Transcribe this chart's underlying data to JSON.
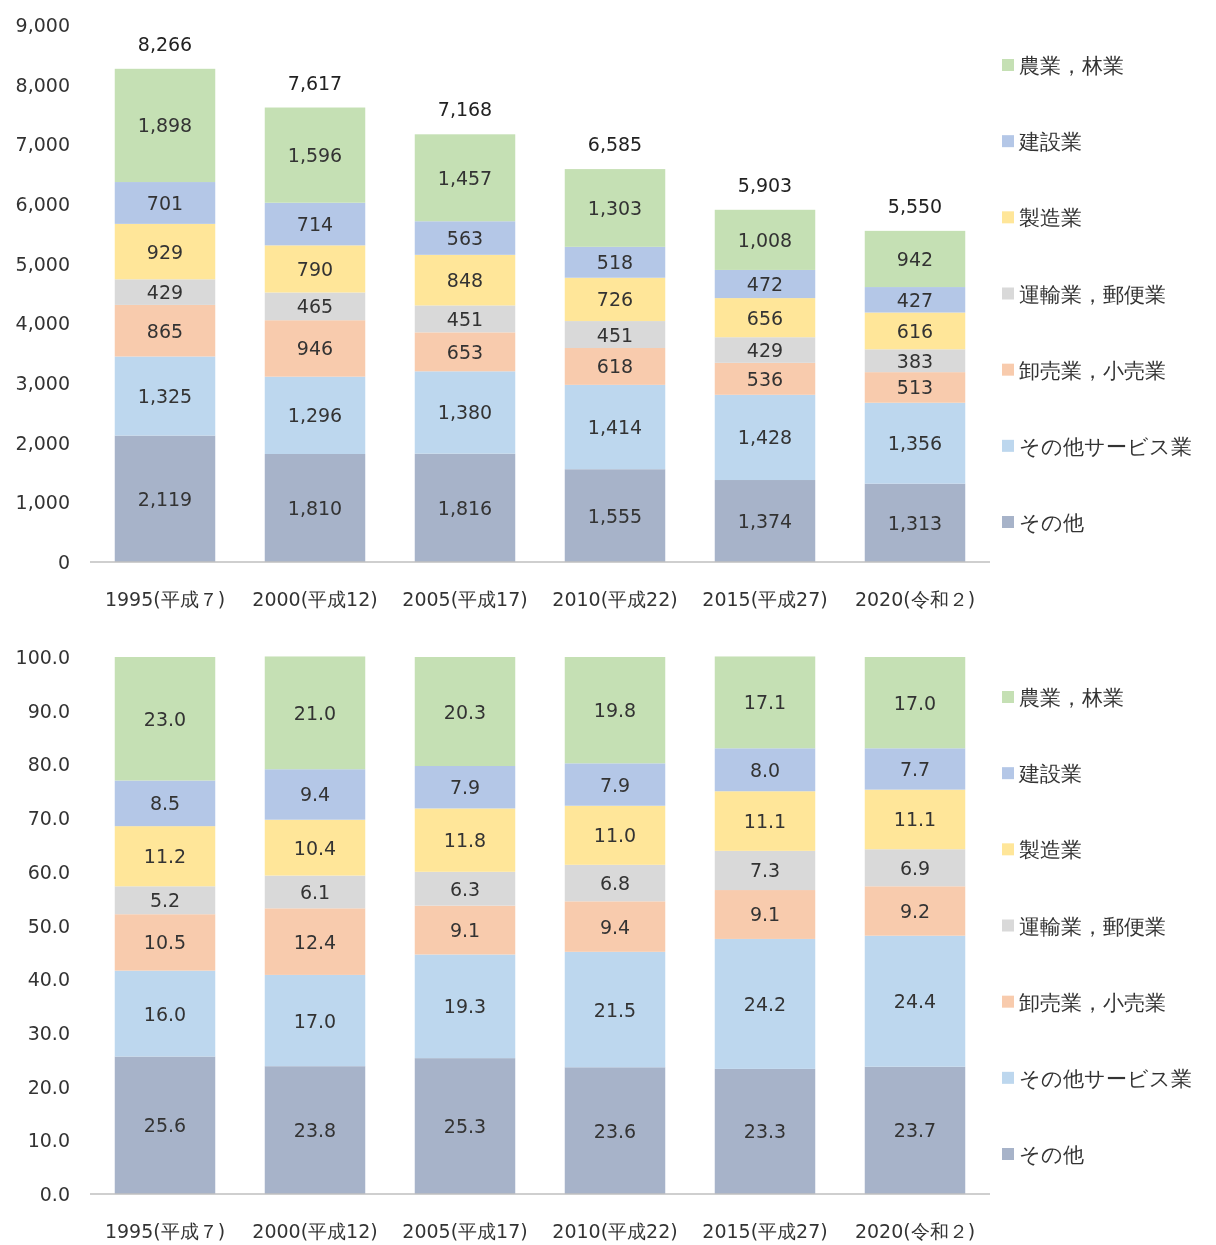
{
  "chart_data": [
    {
      "type": "bar",
      "stacked": true,
      "categories": [
        "1995(平成７)",
        "2000(平成12)",
        "2005(平成17)",
        "2010(平成22)",
        "2015(平成27)",
        "2020(令和２)"
      ],
      "ylim": [
        0,
        9000
      ],
      "yticks": [
        0,
        {
          "value": 1000,
          "label": "1,000"
        },
        {
          "value": 2000,
          "label": "2,000"
        },
        {
          "value": 3000,
          "label": "3,000"
        },
        {
          "value": 4000,
          "label": "4,000"
        },
        {
          "value": 5000,
          "label": "5,000"
        },
        {
          "value": 6000,
          "label": "6,000"
        },
        {
          "value": 7000,
          "label": "7,000"
        },
        {
          "value": 8000,
          "label": "8,000"
        },
        {
          "value": 9000,
          "label": "9,000"
        }
      ],
      "legend": "right",
      "grid": false,
      "totals": [
        "8,266",
        "7,617",
        "7,168",
        "6,585",
        "5,903",
        "5,550"
      ],
      "series": [
        {
          "name": "その他",
          "color": "#a7b3c9",
          "values": [
            2119,
            1810,
            1816,
            1555,
            1374,
            1313
          ],
          "value_labels": [
            "2,119",
            "1,810",
            "1,816",
            "1,555",
            "1,374",
            "1,313"
          ]
        },
        {
          "name": "その他サービス業",
          "color": "#bdd7ee",
          "values": [
            1325,
            1296,
            1380,
            1414,
            1428,
            1356
          ],
          "value_labels": [
            "1,325",
            "1,296",
            "1,380",
            "1,414",
            "1,428",
            "1,356"
          ]
        },
        {
          "name": "卸売業，小売業",
          "color": "#f8cbad",
          "values": [
            865,
            946,
            653,
            618,
            536,
            513
          ],
          "value_labels": [
            "865",
            "946",
            "653",
            "618",
            "536",
            "513"
          ]
        },
        {
          "name": "運輸業，郵便業",
          "color": "#d9d9d9",
          "values": [
            429,
            465,
            451,
            451,
            429,
            383
          ],
          "value_labels": [
            "429",
            "465",
            "451",
            "451",
            "429",
            "383"
          ]
        },
        {
          "name": "製造業",
          "color": "#ffe699",
          "values": [
            929,
            790,
            848,
            726,
            656,
            616
          ],
          "value_labels": [
            "929",
            "790",
            "848",
            "726",
            "656",
            "616"
          ]
        },
        {
          "name": "建設業",
          "color": "#b4c7e7",
          "values": [
            701,
            714,
            563,
            518,
            472,
            427
          ],
          "value_labels": [
            "701",
            "714",
            "563",
            "518",
            "472",
            "427"
          ]
        },
        {
          "name": "農業，林業",
          "color": "#c5e0b4",
          "values": [
            1898,
            1596,
            1457,
            1303,
            1008,
            942
          ],
          "value_labels": [
            "1,898",
            "1,596",
            "1,457",
            "1,303",
            "1,008",
            "942"
          ]
        }
      ]
    },
    {
      "type": "bar",
      "stacked": true,
      "categories": [
        "1995(平成７)",
        "2000(平成12)",
        "2005(平成17)",
        "2010(平成22)",
        "2015(平成27)",
        "2020(令和２)"
      ],
      "ylim": [
        0,
        100
      ],
      "yticks": [
        {
          "value": 0,
          "label": "0.0"
        },
        {
          "value": 10,
          "label": "10.0"
        },
        {
          "value": 20,
          "label": "20.0"
        },
        {
          "value": 30,
          "label": "30.0"
        },
        {
          "value": 40,
          "label": "40.0"
        },
        {
          "value": 50,
          "label": "50.0"
        },
        {
          "value": 60,
          "label": "60.0"
        },
        {
          "value": 70,
          "label": "70.0"
        },
        {
          "value": 80,
          "label": "80.0"
        },
        {
          "value": 90,
          "label": "90.0"
        },
        {
          "value": 100,
          "label": "100.0"
        }
      ],
      "legend": "right",
      "grid": false,
      "series": [
        {
          "name": "その他",
          "color": "#a7b3c9",
          "values": [
            25.6,
            23.8,
            25.3,
            23.6,
            23.3,
            23.7
          ],
          "value_labels": [
            "25.6",
            "23.8",
            "25.3",
            "23.6",
            "23.3",
            "23.7"
          ]
        },
        {
          "name": "その他サービス業",
          "color": "#bdd7ee",
          "values": [
            16.0,
            17.0,
            19.3,
            21.5,
            24.2,
            24.4
          ],
          "value_labels": [
            "16.0",
            "17.0",
            "19.3",
            "21.5",
            "24.2",
            "24.4"
          ]
        },
        {
          "name": "卸売業，小売業",
          "color": "#f8cbad",
          "values": [
            10.5,
            12.4,
            9.1,
            9.4,
            9.1,
            9.2
          ],
          "value_labels": [
            "10.5",
            "12.4",
            "9.1",
            "9.4",
            "9.1",
            "9.2"
          ]
        },
        {
          "name": "運輸業，郵便業",
          "color": "#d9d9d9",
          "values": [
            5.2,
            6.1,
            6.3,
            6.8,
            7.3,
            6.9
          ],
          "value_labels": [
            "5.2",
            "6.1",
            "6.3",
            "6.8",
            "7.3",
            "6.9"
          ]
        },
        {
          "name": "製造業",
          "color": "#ffe699",
          "values": [
            11.2,
            10.4,
            11.8,
            11.0,
            11.1,
            11.1
          ],
          "value_labels": [
            "11.2",
            "10.4",
            "11.8",
            "11.0",
            "11.1",
            "11.1"
          ]
        },
        {
          "name": "建設業",
          "color": "#b4c7e7",
          "values": [
            8.5,
            9.4,
            7.9,
            7.9,
            8.0,
            7.7
          ],
          "value_labels": [
            "8.5",
            "9.4",
            "7.9",
            "7.9",
            "8.0",
            "7.7"
          ]
        },
        {
          "name": "農業，林業",
          "color": "#c5e0b4",
          "values": [
            23.0,
            21.0,
            20.3,
            19.8,
            17.1,
            17.0
          ],
          "value_labels": [
            "23.0",
            "21.0",
            "20.3",
            "19.8",
            "17.1",
            "17.0"
          ]
        }
      ]
    }
  ]
}
